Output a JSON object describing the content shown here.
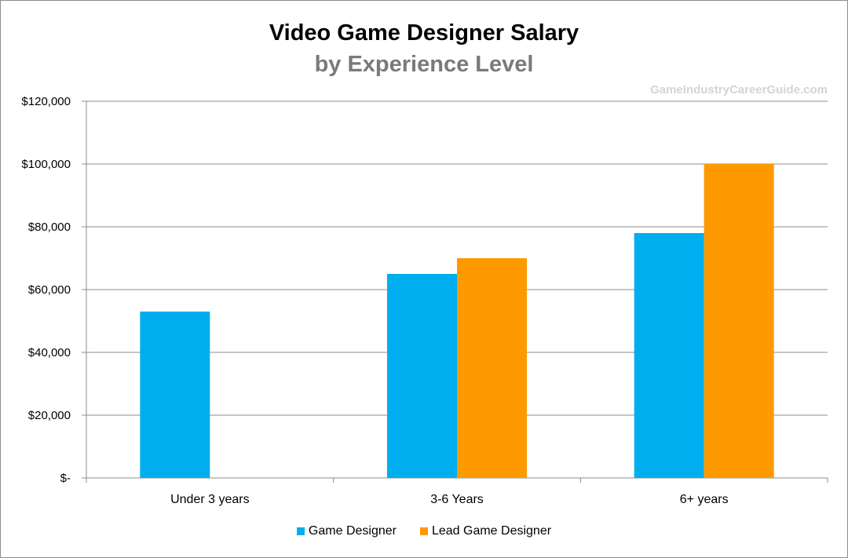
{
  "chart_data": {
    "type": "bar",
    "title": "Video Game Designer Salary",
    "subtitle": "by Experience Level",
    "watermark": "GameIndustryCareerGuide.com",
    "categories": [
      "Under 3 years",
      "3-6 Years",
      "6+ years"
    ],
    "series": [
      {
        "name": "Game Designer",
        "color": "#00aeef",
        "values": [
          53000,
          65000,
          78000
        ]
      },
      {
        "name": "Lead Game Designer",
        "color": "#ff9900",
        "values": [
          null,
          70000,
          100000
        ]
      }
    ],
    "ylim": [
      0,
      120000
    ],
    "yticks": [
      0,
      20000,
      40000,
      60000,
      80000,
      100000,
      120000
    ],
    "ytick_labels": [
      "$-",
      "$20,000",
      "$40,000",
      "$60,000",
      "$80,000",
      "$100,000",
      "$120,000"
    ],
    "grid": true,
    "legend_position": "bottom"
  }
}
